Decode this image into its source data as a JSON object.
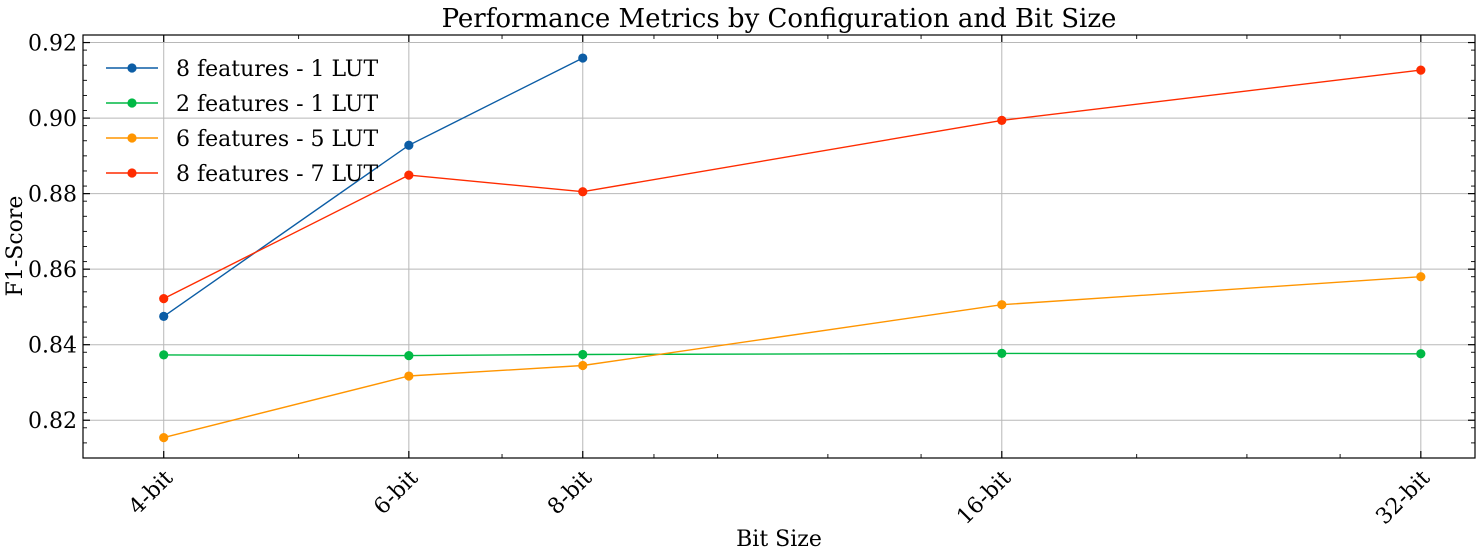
{
  "chart_data": {
    "type": "line",
    "title": "Performance Metrics by Configuration and Bit Size",
    "xlabel": "Bit Size",
    "ylabel": "F1-Score",
    "categories": [
      "4-bit",
      "6-bit",
      "8-bit",
      "16-bit",
      "32-bit"
    ],
    "x": [
      4,
      6,
      8,
      16,
      32
    ],
    "x_scale": "log2",
    "xlim": [
      3.5,
      35
    ],
    "ylim": [
      0.81,
      0.922
    ],
    "yticks": [
      0.82,
      0.84,
      0.86,
      0.88,
      0.9,
      0.92
    ],
    "ytick_labels": [
      "0.82",
      "0.84",
      "0.86",
      "0.88",
      "0.90",
      "0.92"
    ],
    "grid": true,
    "legend_position": "top-left",
    "series": [
      {
        "name": "8 features - 1 LUT",
        "color": "#0C5DA5",
        "values": [
          0.8475,
          0.8928,
          0.9159,
          null,
          null
        ]
      },
      {
        "name": "2 features - 1 LUT",
        "color": "#00B945",
        "values": [
          0.8373,
          0.8371,
          0.8374,
          0.8377,
          0.8376
        ]
      },
      {
        "name": "6 features - 5 LUT",
        "color": "#FF9500",
        "values": [
          0.8154,
          0.8317,
          0.8345,
          0.8506,
          0.858
        ]
      },
      {
        "name": "8 features - 7 LUT",
        "color": "#FF2C00",
        "values": [
          0.8522,
          0.8849,
          0.8805,
          0.8994,
          0.9127
        ]
      }
    ]
  }
}
